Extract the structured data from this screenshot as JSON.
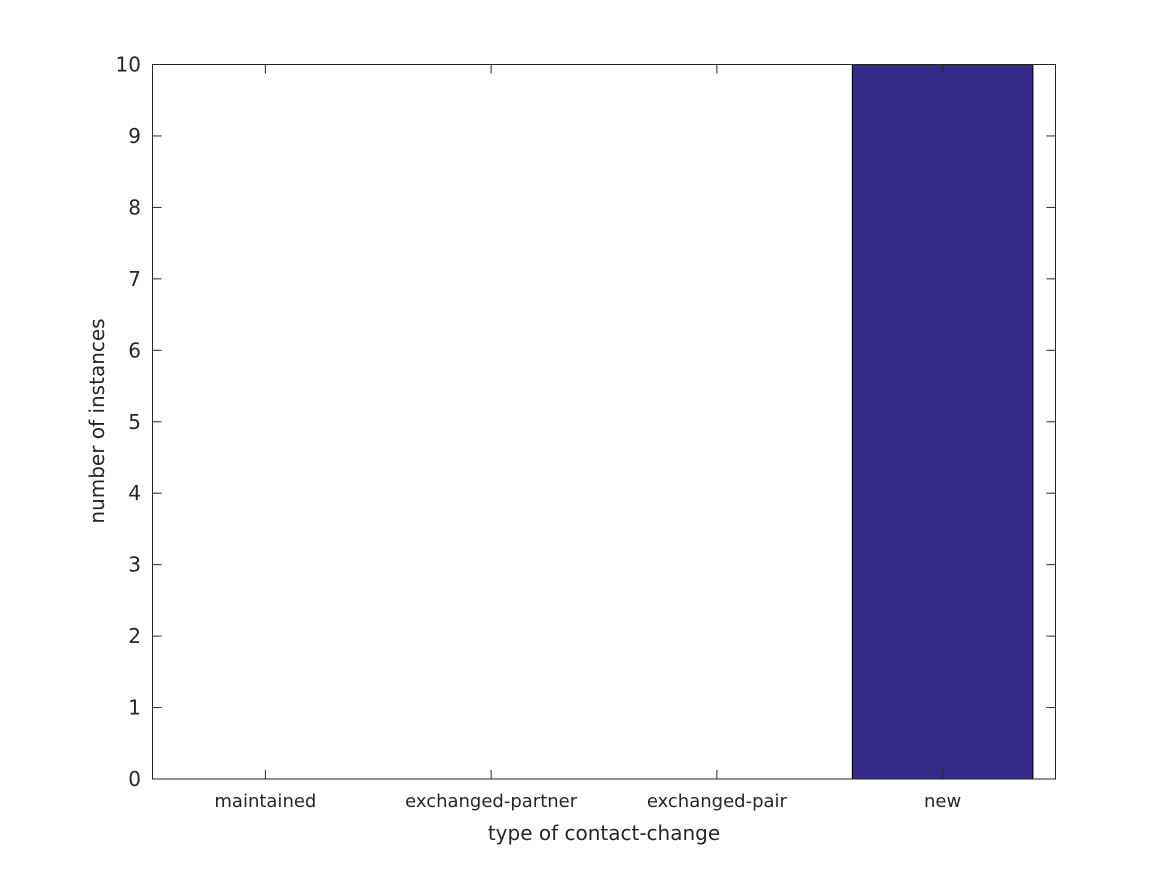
{
  "chart_data": {
    "type": "bar",
    "categories": [
      "maintained",
      "exchanged-partner",
      "exchanged-pair",
      "new"
    ],
    "values": [
      0,
      0,
      0,
      10
    ],
    "title": "",
    "xlabel": "type of contact-change",
    "ylabel": "number of instances",
    "ylim": [
      0,
      10
    ],
    "yticks": [
      0,
      1,
      2,
      3,
      4,
      5,
      6,
      7,
      8,
      9,
      10
    ],
    "grid": false,
    "bar_color": "#352a87",
    "axis_color": "#262626"
  }
}
